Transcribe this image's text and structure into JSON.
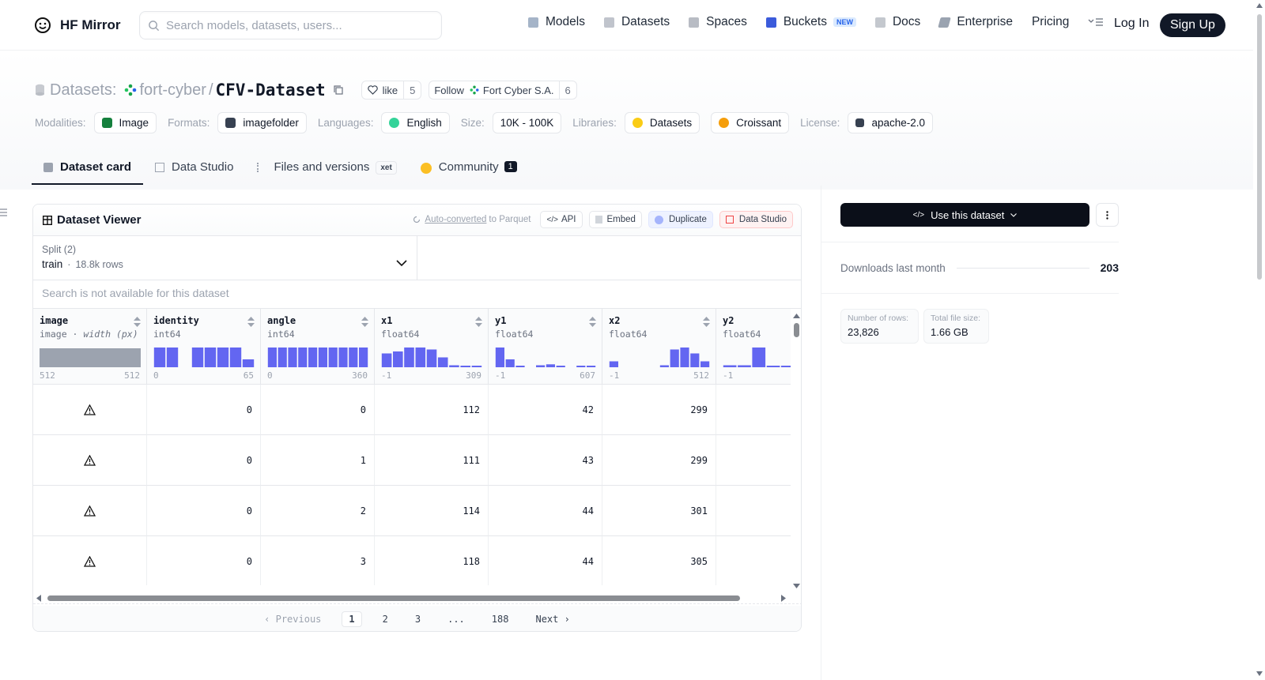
{
  "nav": {
    "brand": "HF Mirror",
    "search_placeholder": "Search models, datasets, users...",
    "links": [
      {
        "label": "Models",
        "icon": "cube-icon"
      },
      {
        "label": "Datasets",
        "icon": "database-icon"
      },
      {
        "label": "Spaces",
        "icon": "grid-icon"
      },
      {
        "label": "Buckets",
        "icon": "bucket-icon",
        "badge": "NEW"
      },
      {
        "label": "Docs",
        "icon": "book-icon"
      },
      {
        "label": "Enterprise",
        "icon": "enterprise-icon"
      },
      {
        "label": "Pricing"
      }
    ],
    "login": "Log In",
    "signup": "Sign Up"
  },
  "header": {
    "section": "Datasets:",
    "org": "fort-cyber",
    "name": "CFV-Dataset",
    "like_label": "like",
    "like_count": "5",
    "follow_label": "Follow",
    "follow_org": "Fort Cyber S.A.",
    "follow_count": "6"
  },
  "tags": {
    "modalities_label": "Modalities:",
    "modality": "Image",
    "formats_label": "Formats:",
    "format": "imagefolder",
    "languages_label": "Languages:",
    "language": "English",
    "size_label": "Size:",
    "size": "10K - 100K",
    "libraries_label": "Libraries:",
    "library1": "Datasets",
    "library2": "Croissant",
    "license_label": "License:",
    "license": "apache-2.0"
  },
  "tabs": {
    "card": "Dataset card",
    "studio": "Data Studio",
    "files": "Files and versions",
    "xet": "xet",
    "community": "Community",
    "community_count": "1"
  },
  "viewer": {
    "title": "Dataset Viewer",
    "auto_converted": "Auto-converted",
    "to_parquet": "to Parquet",
    "api": "API",
    "embed": "Embed",
    "duplicate": "Duplicate",
    "data_studio": "Data Studio",
    "split_label": "Split (2)",
    "split_value": "train",
    "split_rows": "18.8k rows",
    "search_na": "Search is not available for this dataset",
    "columns": [
      {
        "name": "image",
        "type": "image",
        "subtype": "width (px)",
        "min": "512",
        "max": "512"
      },
      {
        "name": "identity",
        "type": "int64",
        "min": "0",
        "max": "65"
      },
      {
        "name": "angle",
        "type": "int64",
        "min": "0",
        "max": "360"
      },
      {
        "name": "x1",
        "type": "float64",
        "min": "-1",
        "max": "309"
      },
      {
        "name": "y1",
        "type": "float64",
        "min": "-1",
        "max": "607"
      },
      {
        "name": "x2",
        "type": "float64",
        "min": "-1",
        "max": "512"
      },
      {
        "name": "y2",
        "type": "float64",
        "min": "-1",
        "max": ""
      }
    ],
    "rows": [
      {
        "identity": "0",
        "angle": "0",
        "x1": "112",
        "y1": "42",
        "x2": "299"
      },
      {
        "identity": "0",
        "angle": "1",
        "x1": "111",
        "y1": "43",
        "x2": "299"
      },
      {
        "identity": "0",
        "angle": "2",
        "x1": "114",
        "y1": "44",
        "x2": "301"
      },
      {
        "identity": "0",
        "angle": "3",
        "x1": "118",
        "y1": "44",
        "x2": "305"
      }
    ],
    "pager": {
      "prev": "Previous",
      "pages": [
        "1",
        "2",
        "3",
        "...",
        "188"
      ],
      "next": "Next"
    }
  },
  "sidebar": {
    "use_dataset": "Use this dataset",
    "downloads_label": "Downloads last month",
    "downloads_value": "203",
    "rows_label": "Number of rows:",
    "rows_value": "23,826",
    "size_label": "Total file size:",
    "size_value": "1.66 GB"
  },
  "colors": {
    "accent": "#6366f1",
    "dark": "#111827",
    "muted": "#9ca3af"
  }
}
